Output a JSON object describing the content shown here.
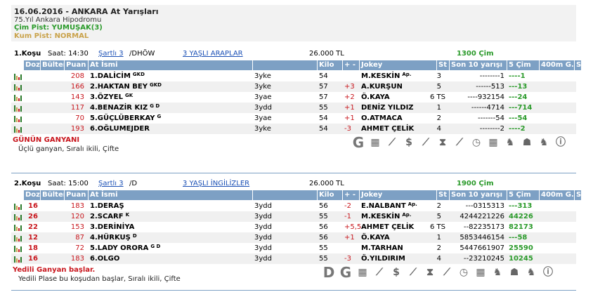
{
  "header": {
    "title": "16.06.2016 - ANKARA At Yarışları",
    "venue": "75.Yıl Ankara Hipodromu",
    "cim": "Çim Pist: YUMUŞAK(3)",
    "kum": "Kum Pist: NORMAL"
  },
  "columns": [
    "Dozaj",
    "Bülten",
    "Puan",
    "At İsmi",
    "",
    "Kilo",
    "+ -",
    "Jokey",
    "St",
    "Son 10 yarışı",
    "5 Çim",
    "400m G.",
    "S"
  ],
  "races": [
    {
      "no": "1.Koşu",
      "time": "Saat: 14:30",
      "cond": "Şartlı 3",
      "cond_suffix": "/DHÖW",
      "type": "3 YAŞLI ARAPLAR",
      "prize": "26.000 TL",
      "distance": "1300 Çim",
      "rows": [
        {
          "bulten": "",
          "puan": "208",
          "name": "1.DALİCİM",
          "sup": "GKD",
          "age": "3yke",
          "kilo": "54",
          "pm": "",
          "jockey": "M.KESKİN",
          "jsup": "Ap.",
          "st": "3",
          "son": "--------1",
          "cim5": "----1"
        },
        {
          "bulten": "",
          "puan": "166",
          "name": "2.HAKTAN BEY",
          "sup": "GKD",
          "age": "3yke",
          "kilo": "57",
          "pm": "+3",
          "jockey": "A.KURŞUN",
          "jsup": "",
          "st": "5",
          "son": "------513",
          "cim5": "---13"
        },
        {
          "bulten": "",
          "puan": "143",
          "name": "3.ÖZYEL",
          "sup": "GK",
          "age": "3yae",
          "kilo": "57",
          "pm": "+2",
          "jockey": "Ö.KAYA",
          "jsup": "",
          "st": "6 TS",
          "son": "----932154",
          "cim5": "---24"
        },
        {
          "bulten": "",
          "puan": "117",
          "name": "4.BENAZİR KIZ",
          "sup": "G D",
          "age": "3ydd",
          "kilo": "55",
          "pm": "+1",
          "jockey": "DENİZ YILDIZ",
          "jsup": "",
          "st": "1",
          "son": "------4714",
          "cim5": "---714"
        },
        {
          "bulten": "",
          "puan": "70",
          "name": "5.GÜÇLÜBERKAY",
          "sup": "G",
          "age": "3yae",
          "kilo": "54",
          "pm": "+1",
          "jockey": "O.ATMACA",
          "jsup": "",
          "st": "2",
          "son": "-------54",
          "cim5": "---54"
        },
        {
          "bulten": "",
          "puan": "193",
          "name": "6.OĞLUMEJDER",
          "sup": "",
          "age": "3yke",
          "kilo": "54",
          "pm": "-3",
          "jockey": "AHMET ÇELİK",
          "jsup": "",
          "st": "4",
          "son": "--------2",
          "cim5": "----2"
        }
      ],
      "footer_title": "GÜNÜN GANYANI",
      "footer_sub": "Üçlü ganyan, Sıralı ikili, Çifte"
    },
    {
      "no": "2.Koşu",
      "time": "Saat: 15:00",
      "cond": "Şartlı 3",
      "cond_suffix": "/D",
      "type": "3 YAŞLI İNGİLİZLER",
      "prize": "26.000 TL",
      "distance": "1900 Çim",
      "rows": [
        {
          "bulten": "16",
          "puan": "183",
          "name": "1.DERAŞ",
          "sup": "",
          "age": "3ydd",
          "kilo": "56",
          "pm": "-2",
          "jockey": "E.NALBANT",
          "jsup": "Ap.",
          "st": "2",
          "son": "---0315313",
          "cim5": "---313"
        },
        {
          "bulten": "26",
          "puan": "120",
          "name": "2.SCARF",
          "sup": "K",
          "age": "3ydd",
          "kilo": "55",
          "pm": "-1",
          "jockey": "M.KESKİN",
          "jsup": "Ap.",
          "st": "5",
          "son": "4244221226",
          "cim5": "44226"
        },
        {
          "bulten": "22",
          "puan": "153",
          "name": "3.DERİNİYA",
          "sup": "",
          "age": "3ydd",
          "kilo": "56",
          "pm": "+5,5",
          "jockey": "AHMET ÇELİK",
          "jsup": "",
          "st": "6 TS",
          "son": "--82235173",
          "cim5": "82173"
        },
        {
          "bulten": "12",
          "puan": "87",
          "name": "4.HÜRKUŞ",
          "sup": "D",
          "age": "3ydd",
          "kilo": "56",
          "pm": "+1",
          "jockey": "Ö.KAYA",
          "jsup": "",
          "st": "1",
          "son": "5853446154",
          "cim5": "---58"
        },
        {
          "bulten": "18",
          "puan": "72",
          "name": "5.LADY ORORA",
          "sup": "G D",
          "age": "3ydd",
          "kilo": "55",
          "pm": "",
          "jockey": "M.TARHAN",
          "jsup": "",
          "st": "2",
          "son": "5447661907",
          "cim5": "25590"
        },
        {
          "bulten": "16",
          "puan": "183",
          "name": "6.OLGO",
          "sup": "",
          "age": "3ydd",
          "kilo": "55",
          "pm": "-3",
          "jockey": "Ö.YILDIRIM",
          "jsup": "",
          "st": "4",
          "son": "--23210245",
          "cim5": "10245"
        }
      ],
      "footer_title": "Yedili Ganyan başlar.",
      "footer_sub": "Yedili Plase bu koşudan başlar, Sıralı ikili, Çifte"
    }
  ],
  "icons": {
    "letter_g": "G",
    "letter_d": "D",
    "dollar": "$",
    "hourglass": "⧗",
    "info": "ⓘ",
    "calc": "▦",
    "chart": "⟋",
    "clock": "◷",
    "horse": "♞",
    "people": "☗"
  },
  "colors": {
    "header_bg": "#7da0c4",
    "red": "#c8161d",
    "green": "#2a9a2a",
    "gold": "#c9a24a"
  }
}
